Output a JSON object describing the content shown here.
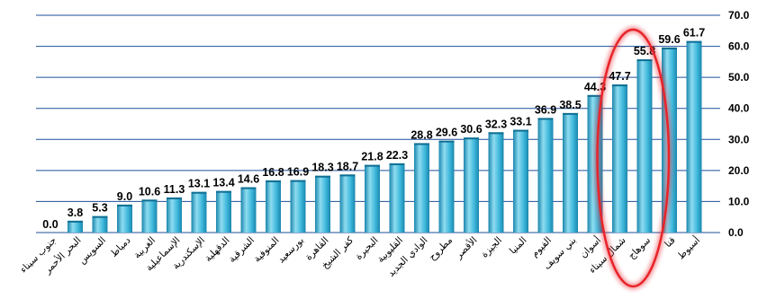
{
  "chart_data": {
    "type": "bar",
    "categories": [
      "جنوب سيناء",
      "البحر الأحمر",
      "السويس",
      "دمياط",
      "الغربية",
      "الإسماعيلية",
      "الإسكندرية",
      "الدقهلية",
      "الشرقية",
      "المنوفية",
      "بورسعيد",
      "القاهرة",
      "كفر الشيخ",
      "البحيرة",
      "القليوبية",
      "الوادي الجديد",
      "مطروح",
      "الأقصر",
      "الجيزة",
      "المنيا",
      "الفيوم",
      "بني سويف",
      "أسوان",
      "شمال سيناء",
      "سوهاج",
      "قنا",
      "أسيوط"
    ],
    "values": [
      0.0,
      3.8,
      5.3,
      9.0,
      10.6,
      11.3,
      13.1,
      13.4,
      14.6,
      16.8,
      16.9,
      18.3,
      18.7,
      21.8,
      22.3,
      28.8,
      29.6,
      30.6,
      32.3,
      33.1,
      36.9,
      38.5,
      44.3,
      47.7,
      55.8,
      59.6,
      61.7
    ],
    "value_labels": [
      "0.0",
      "3.8",
      "5.3",
      "9.0",
      "10.6",
      "11.3",
      "13.1",
      "13.4",
      "14.6",
      "16.8",
      "16.9",
      "18.3",
      "18.7",
      "21.8",
      "22.3",
      "28.8",
      "29.6",
      "30.6",
      "32.3",
      "33.1",
      "36.9",
      "38.5",
      "44.3",
      "47.7",
      "55.8",
      "59.6",
      "61.7"
    ],
    "y_ticks": [
      "0.0",
      "10.0",
      "20.0",
      "30.0",
      "40.0",
      "50.0",
      "60.0",
      "70.0"
    ],
    "ylim": [
      0,
      70
    ],
    "y_axis_side": "right",
    "grid": true,
    "title": "",
    "xlabel": "",
    "ylabel": "",
    "highlight": {
      "categories": [
        "شمال سيناء",
        "سوهاج"
      ],
      "shape": "ellipse",
      "color": "#e8242a"
    },
    "colors": {
      "bar_light": "#8fdcf0",
      "bar_mid": "#3fb8dc",
      "bar_dark": "#1a86ad",
      "grid": "#1e4f9a"
    }
  }
}
